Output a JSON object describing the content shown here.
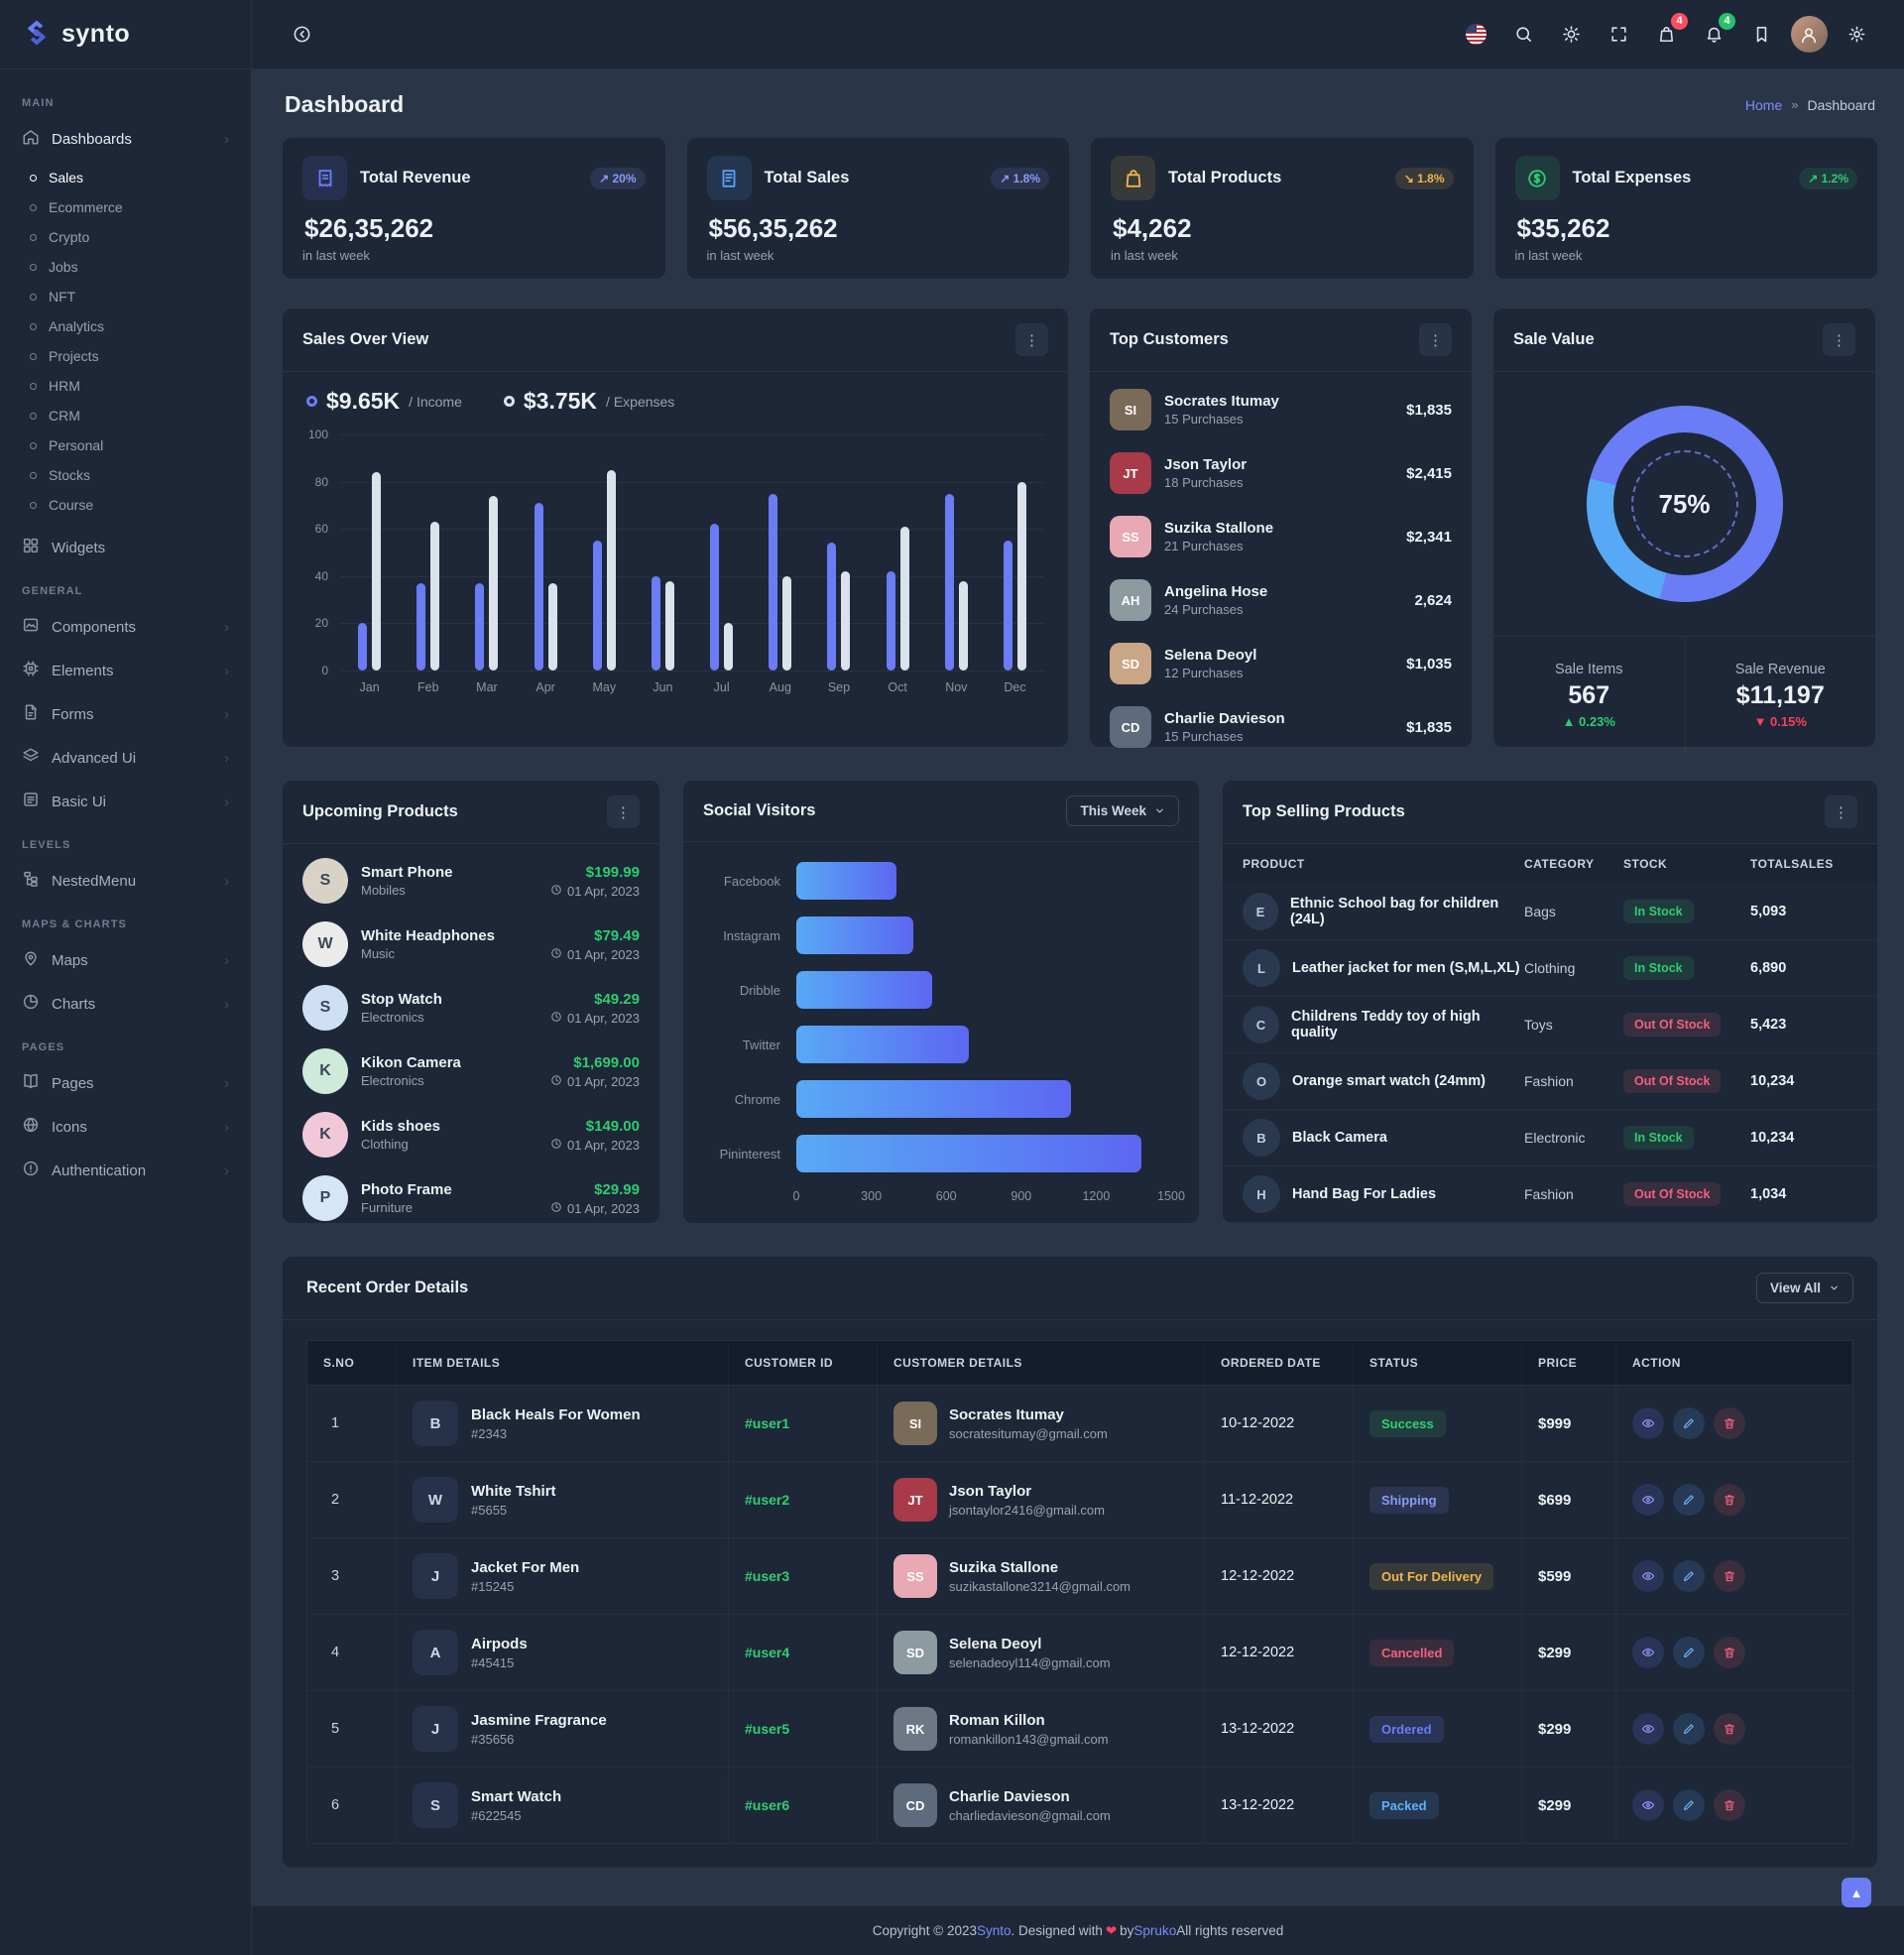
{
  "brand": "synto",
  "page_title": "Dashboard",
  "breadcrumb": {
    "home": "Home",
    "sep": "»",
    "current": "Dashboard"
  },
  "topbar": {
    "icons": [
      {
        "name": "flag-icon"
      },
      {
        "name": "search-icon"
      },
      {
        "name": "sun-icon"
      },
      {
        "name": "fullscreen-icon"
      },
      {
        "name": "cart-icon",
        "badge": "4",
        "badge_color": "red"
      },
      {
        "name": "bell-icon",
        "badge": "4",
        "badge_color": "green"
      },
      {
        "name": "bookmark-icon"
      },
      {
        "name": "avatar"
      },
      {
        "name": "gear-icon"
      }
    ]
  },
  "sidebar": {
    "sections": [
      {
        "label": "MAIN",
        "items": [
          {
            "icon": "home",
            "label": "Dashboards",
            "chevron": true,
            "active": true,
            "children": [
              "Sales",
              "Ecommerce",
              "Crypto",
              "Jobs",
              "NFT",
              "Analytics",
              "Projects",
              "HRM",
              "CRM",
              "Personal",
              "Stocks",
              "Course"
            ],
            "active_child": "Sales"
          },
          {
            "icon": "grid",
            "label": "Widgets"
          }
        ]
      },
      {
        "label": "GENERAL",
        "items": [
          {
            "icon": "components",
            "label": "Components",
            "chevron": true
          },
          {
            "icon": "cpu",
            "label": "Elements",
            "chevron": true
          },
          {
            "icon": "file",
            "label": "Forms",
            "chevron": true
          },
          {
            "icon": "layers",
            "label": "Advanced Ui",
            "chevron": true
          },
          {
            "icon": "listdoc",
            "label": "Basic Ui",
            "chevron": true
          }
        ]
      },
      {
        "label": "LEVELS",
        "items": [
          {
            "icon": "tree",
            "label": "NestedMenu",
            "chevron": true
          }
        ]
      },
      {
        "label": "MAPS & CHARTS",
        "items": [
          {
            "icon": "pin",
            "label": "Maps",
            "chevron": true
          },
          {
            "icon": "pie",
            "label": "Charts",
            "chevron": true
          }
        ]
      },
      {
        "label": "PAGES",
        "items": [
          {
            "icon": "book",
            "label": "Pages",
            "chevron": true
          },
          {
            "icon": "globe",
            "label": "Icons",
            "chevron": true
          },
          {
            "icon": "alert",
            "label": "Authentication",
            "chevron": true
          }
        ]
      }
    ]
  },
  "stat_cards": [
    {
      "icon": "receipt",
      "accent": "#6b7cf7",
      "title": "Total Revenue",
      "badge": {
        "dir": "up",
        "text": "20%",
        "color": "#8d9af9"
      },
      "value": "$26,35,262",
      "note": "in last week"
    },
    {
      "icon": "invoice",
      "accent": "#55a0f8",
      "title": "Total Sales",
      "badge": {
        "dir": "up",
        "text": "1.8%",
        "color": "#8d9af9"
      },
      "value": "$56,35,262",
      "note": "in last week"
    },
    {
      "icon": "bag",
      "accent": "#f0b64b",
      "title": "Total Products",
      "badge": {
        "dir": "down",
        "text": "1.8%",
        "color": "#f0b64b"
      },
      "value": "$4,262",
      "note": "in last week"
    },
    {
      "icon": "dollar",
      "accent": "#2fcb71",
      "title": "Total Expenses",
      "badge": {
        "dir": "up",
        "text": "1.2%",
        "color": "#2fcb71"
      },
      "value": "$35,262",
      "note": "in last week"
    }
  ],
  "chart_data": [
    {
      "type": "bar",
      "title": "Sales Over View",
      "legend": [
        {
          "value": "$9.65K",
          "label": "/ Income"
        },
        {
          "value": "$3.75K",
          "label": "/ Expenses"
        }
      ],
      "categories": [
        "Jan",
        "Feb",
        "Mar",
        "Apr",
        "May",
        "Jun",
        "Jul",
        "Aug",
        "Sep",
        "Oct",
        "Nov",
        "Dec"
      ],
      "series": [
        {
          "name": "Income",
          "values": [
            20,
            37,
            37,
            71,
            55,
            40,
            62,
            75,
            54,
            42,
            75,
            55
          ]
        },
        {
          "name": "Expenses",
          "values": [
            84,
            63,
            74,
            37,
            85,
            38,
            20,
            40,
            42,
            61,
            38,
            80
          ]
        }
      ],
      "ylim": [
        0,
        100
      ],
      "yticks": [
        100,
        80,
        60,
        40,
        20,
        0
      ],
      "grid": true,
      "legend_position": "top"
    },
    {
      "type": "bar",
      "title": "Social Visitors",
      "orientation": "horizontal",
      "filter": "This Week",
      "categories": [
        "Facebook",
        "Instagram",
        "Dribble",
        "Twitter",
        "Chrome",
        "Pininterest"
      ],
      "values": [
        400,
        470,
        545,
        690,
        1100,
        1380
      ],
      "xlim": [
        0,
        1500
      ],
      "xticks": [
        0,
        300,
        600,
        900,
        1200,
        1500
      ]
    },
    {
      "type": "pie",
      "title": "Sale Value",
      "percent": 75,
      "percent_label": "75%",
      "slices": [
        {
          "label": "filled",
          "value": 75,
          "color": "#6b7cf7"
        },
        {
          "label": "rest",
          "value": 25,
          "color": "#58a9f5"
        }
      ]
    }
  ],
  "top_customers": {
    "title": "Top Customers",
    "rows": [
      {
        "name": "Socrates Itumay",
        "purchases": "15 Purchases",
        "amount": "$1,835",
        "initials": "SI",
        "color": "#7a6a58"
      },
      {
        "name": "Json Taylor",
        "purchases": "18 Purchases",
        "amount": "$2,415",
        "initials": "JT",
        "color": "#a83a4a"
      },
      {
        "name": "Suzika Stallone",
        "purchases": "21 Purchases",
        "amount": "$2,341",
        "initials": "SS",
        "color": "#e8a8b4"
      },
      {
        "name": "Angelina Hose",
        "purchases": "24 Purchases",
        "amount": "2,624",
        "initials": "AH",
        "color": "#8d9aa0"
      },
      {
        "name": "Selena Deoyl",
        "purchases": "12 Purchases",
        "amount": "$1,035",
        "initials": "SD",
        "color": "#c9a685"
      },
      {
        "name": "Charlie Davieson",
        "purchases": "15 Purchases",
        "amount": "$1,835",
        "initials": "CD",
        "color": "#5e6b7c"
      }
    ]
  },
  "sale_value": {
    "title": "Sale Value",
    "percent": 75,
    "percent_label": "75%",
    "stats": [
      {
        "label": "Sale Items",
        "value": "567",
        "delta": "0.23%",
        "dir": "up"
      },
      {
        "label": "Sale Revenue",
        "value": "$11,197",
        "delta": "0.15%",
        "dir": "down"
      }
    ]
  },
  "upcoming": {
    "title": "Upcoming Products",
    "rows": [
      {
        "name": "Smart Phone",
        "cat": "Mobiles",
        "price": "$199.99",
        "date": "01 Apr, 2023",
        "tint": "#d9d3c7"
      },
      {
        "name": "White Headphones",
        "cat": "Music",
        "price": "$79.49",
        "date": "01 Apr, 2023",
        "tint": "#ebebea"
      },
      {
        "name": "Stop Watch",
        "cat": "Electronics",
        "price": "$49.29",
        "date": "01 Apr, 2023",
        "tint": "#cfe0f5"
      },
      {
        "name": "Kikon Camera",
        "cat": "Electronics",
        "price": "$1,699.00",
        "date": "01 Apr, 2023",
        "tint": "#cdeada"
      },
      {
        "name": "Kids shoes",
        "cat": "Clothing",
        "price": "$149.00",
        "date": "01 Apr, 2023",
        "tint": "#f1c8d8"
      },
      {
        "name": "Photo Frame",
        "cat": "Furniture",
        "price": "$29.99",
        "date": "01 Apr, 2023",
        "tint": "#d7e6f6"
      }
    ]
  },
  "social": {
    "title": "Social Visitors",
    "filter": "This Week"
  },
  "top_selling": {
    "title": "Top Selling Products",
    "headers": [
      "PRODUCT",
      "CATEGORY",
      "STOCK",
      "TOTALSALES"
    ],
    "rows": [
      {
        "name": "Ethnic School bag for children (24L)",
        "cat": "Bags",
        "stock": "In Stock",
        "in_stock": true,
        "total": "5,093"
      },
      {
        "name": "Leather jacket for men (S,M,L,XL)",
        "cat": "Clothing",
        "stock": "In Stock",
        "in_stock": true,
        "total": "6,890"
      },
      {
        "name": "Childrens Teddy toy of high quality",
        "cat": "Toys",
        "stock": "Out Of Stock",
        "in_stock": false,
        "total": "5,423"
      },
      {
        "name": "Orange smart watch (24mm)",
        "cat": "Fashion",
        "stock": "Out Of Stock",
        "in_stock": false,
        "total": "10,234"
      },
      {
        "name": "Black Camera",
        "cat": "Electronic",
        "stock": "In Stock",
        "in_stock": true,
        "total": "10,234"
      },
      {
        "name": "Hand Bag For Ladies",
        "cat": "Fashion",
        "stock": "Out Of Stock",
        "in_stock": false,
        "total": "1,034"
      }
    ]
  },
  "orders": {
    "title": "Recent Order Details",
    "view_all": "View All",
    "headers": [
      "S.NO",
      "ITEM DETAILS",
      "CUSTOMER ID",
      "CUSTOMER DETAILS",
      "ORDERED DATE",
      "STATUS",
      "PRICE",
      "ACTION"
    ],
    "rows": [
      {
        "sno": "1",
        "item": "Black Heals For Women",
        "iid": "#2343",
        "cid": "#user1",
        "cname": "Socrates Itumay",
        "email": "socratesitumay@gmail.com",
        "avatar_color": "#7a6a58",
        "initials": "SI",
        "date": "10-12-2022",
        "status": "Success",
        "status_class": "st-green",
        "price": "$999"
      },
      {
        "sno": "2",
        "item": "White Tshirt",
        "iid": "#5655",
        "cid": "#user2",
        "cname": "Json Taylor",
        "email": "jsontaylor2416@gmail.com",
        "avatar_color": "#a83a4a",
        "initials": "JT",
        "date": "11-12-2022",
        "status": "Shipping",
        "status_class": "st-indigo",
        "price": "$699"
      },
      {
        "sno": "3",
        "item": "Jacket For Men",
        "iid": "#15245",
        "cid": "#user3",
        "cname": "Suzika Stallone",
        "email": "suzikastallone3214@gmail.com",
        "avatar_color": "#e8a8b4",
        "initials": "SS",
        "date": "12-12-2022",
        "status": "Out For Delivery",
        "status_class": "st-yellow",
        "price": "$599"
      },
      {
        "sno": "4",
        "item": "Airpods",
        "iid": "#45415",
        "cid": "#user4",
        "cname": "Selena Deoyl",
        "email": "selenadeoyl114@gmail.com",
        "avatar_color": "#8d9aa0",
        "initials": "SD",
        "date": "12-12-2022",
        "status": "Cancelled",
        "status_class": "st-red",
        "price": "$299"
      },
      {
        "sno": "5",
        "item": "Jasmine Fragrance",
        "iid": "#35656",
        "cid": "#user5",
        "cname": "Roman Killon",
        "email": "romankillon143@gmail.com",
        "avatar_color": "#6d7785",
        "initials": "RK",
        "date": "13-12-2022",
        "status": "Ordered",
        "status_class": "st-indigo2",
        "price": "$299"
      },
      {
        "sno": "6",
        "item": "Smart Watch",
        "iid": "#622545",
        "cid": "#user6",
        "cname": "Charlie Davieson",
        "email": "charliedavieson@gmail.com",
        "avatar_color": "#5e6b7c",
        "initials": "CD",
        "date": "13-12-2022",
        "status": "Packed",
        "status_class": "st-blue",
        "price": "$299"
      }
    ]
  },
  "footer": {
    "pre": "Copyright © 2023 ",
    "brand": "Synto",
    "mid": ". Designed with ",
    "heart": "❤",
    "by": " by ",
    "designer": "Spruko",
    "post": " All rights reserved"
  }
}
